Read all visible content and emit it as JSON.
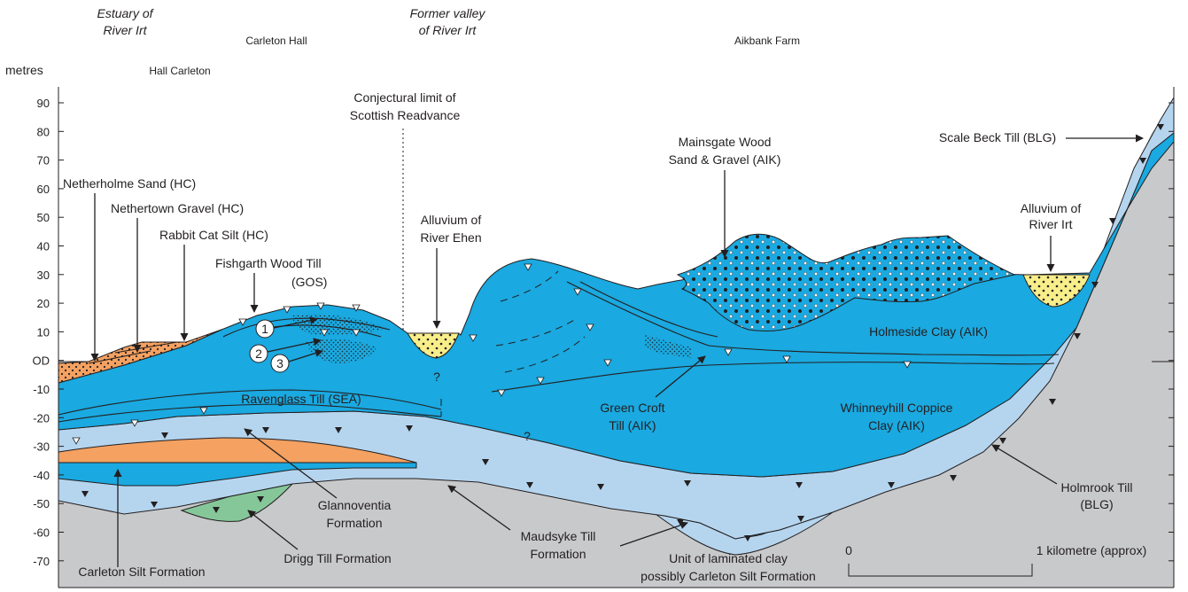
{
  "header": {
    "estuary": [
      "Estuary of",
      "River Irt"
    ],
    "carleton_hall": "Carleton Hall",
    "hall_carleton": "Hall Carleton",
    "former_valley": [
      "Former valley",
      "of River Irt"
    ],
    "aikbank": "Aikbank Farm"
  },
  "axis": {
    "unit": "metres",
    "ticks": [
      "90",
      "80",
      "70",
      "60",
      "50",
      "40",
      "30",
      "20",
      "10",
      "OD",
      "-10",
      "-20",
      "-30",
      "-40",
      "-50",
      "-60",
      "-70"
    ]
  },
  "labels": {
    "conjectural": [
      "Conjectural limit of",
      "Scottish Readvance"
    ],
    "netherholme": "Netherholme Sand (HC)",
    "nethertown": "Nethertown Gravel (HC)",
    "rabbit_cat": "Rabbit Cat Silt (HC)",
    "fishgarth": [
      "Fishgarth Wood Till",
      "(GOS)"
    ],
    "alluvium_ehen": [
      "Alluvium of",
      "River Ehen"
    ],
    "mainsgate": [
      "Mainsgate Wood",
      "Sand & Gravel (AIK)"
    ],
    "scale_beck": "Scale Beck Till (BLG)",
    "alluvium_irt": [
      "Alluvium of",
      "River Irt"
    ],
    "holmeside": "Holmeside Clay (AIK)",
    "ravenglass": "Ravenglass Till (SEA)",
    "green_croft": [
      "Green Croft",
      "Till (AIK)"
    ],
    "whinneyhill": [
      "Whinneyhill Coppice",
      "Clay (AIK)"
    ],
    "glannoventia": [
      "Glannoventia",
      "Formation"
    ],
    "holmrook": [
      "Holmrook Till",
      "(BLG)"
    ],
    "maudsyke": [
      "Maudsyke Till",
      "Formation"
    ],
    "carleton_silt": "Carleton Silt Formation",
    "drigg": "Drigg Till Formation",
    "laminated": [
      "Unit of laminated clay",
      "possibly Carleton Silt Formation"
    ],
    "q1": "?",
    "q2": "?",
    "num1": "1",
    "num2": "2",
    "num3": "3"
  },
  "scale_bar": {
    "start": "0",
    "end": "1 kilometre (approx)"
  },
  "colors": {
    "blue": "#1aa9e0",
    "light_blue": "#b5d5ef",
    "orange": "#f4a161",
    "yellow": "#f8ee8a",
    "green": "#86c79a",
    "grey": "#c8c9cb"
  }
}
